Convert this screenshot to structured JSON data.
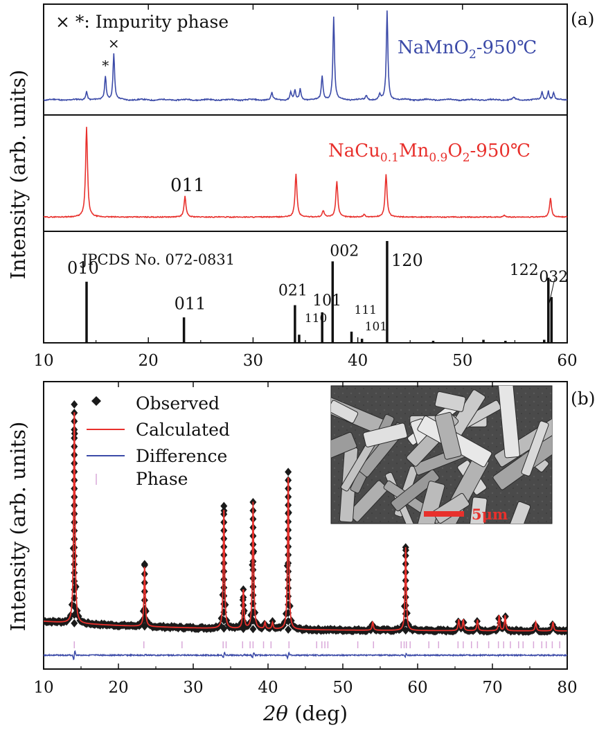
{
  "figure": {
    "panel_a_label": "(a)",
    "panel_b_label": "(b)",
    "ylabel": "Intensity (arb. units)",
    "xlabel_b_italic": "2θ",
    "xlabel_b_rest": " (deg)"
  },
  "chart_data": [
    {
      "type": "line",
      "panel": "(a) top",
      "annotation": "× *: Impurity phase",
      "series": [
        {
          "name": "NaMnO2-950℃",
          "label_prefix": "NaMnO",
          "label_sub": "2",
          "label_suffix": "-950℃",
          "color": "#3b4aa8"
        }
      ],
      "peaks": [
        {
          "x": 14.1,
          "h": 0.1
        },
        {
          "x": 15.9,
          "h": 0.27,
          "marker": "*"
        },
        {
          "x": 16.7,
          "h": 0.52,
          "marker": "×"
        },
        {
          "x": 31.8,
          "h": 0.08
        },
        {
          "x": 33.6,
          "h": 0.09
        },
        {
          "x": 34.0,
          "h": 0.1
        },
        {
          "x": 34.5,
          "h": 0.12
        },
        {
          "x": 36.6,
          "h": 0.27
        },
        {
          "x": 37.7,
          "h": 0.93
        },
        {
          "x": 40.8,
          "h": 0.05
        },
        {
          "x": 42.1,
          "h": 0.06
        },
        {
          "x": 42.8,
          "h": 1.0
        },
        {
          "x": 54.9,
          "h": 0.03
        },
        {
          "x": 57.6,
          "h": 0.09
        },
        {
          "x": 58.2,
          "h": 0.1
        },
        {
          "x": 58.7,
          "h": 0.08
        }
      ],
      "xlim": [
        10,
        60
      ]
    },
    {
      "type": "line",
      "panel": "(a) middle",
      "series": [
        {
          "name": "NaCu0.1Mn0.9O2-950℃",
          "color": "#e8302c"
        }
      ],
      "label_parts": [
        "NaCu",
        "0.1",
        "Mn",
        "0.9",
        "O",
        "2",
        "-950℃"
      ],
      "annotation": "011",
      "peaks": [
        {
          "x": 14.1,
          "h": 1.0
        },
        {
          "x": 23.5,
          "h": 0.23
        },
        {
          "x": 34.1,
          "h": 0.48
        },
        {
          "x": 36.7,
          "h": 0.07
        },
        {
          "x": 38.0,
          "h": 0.4
        },
        {
          "x": 40.6,
          "h": 0.03
        },
        {
          "x": 42.7,
          "h": 0.48
        },
        {
          "x": 54.0,
          "h": 0.02
        },
        {
          "x": 58.4,
          "h": 0.21
        }
      ],
      "xlim": [
        10,
        60
      ]
    },
    {
      "type": "bar",
      "panel": "(a) bottom",
      "title": "JPCDS No. 072-0831",
      "sticks": [
        {
          "x": 14.1,
          "h": 0.6,
          "hkl": "010"
        },
        {
          "x": 23.4,
          "h": 0.25,
          "hkl": "011"
        },
        {
          "x": 34.0,
          "h": 0.37,
          "hkl": "021"
        },
        {
          "x": 34.4,
          "h": 0.08,
          "hkl": "110"
        },
        {
          "x": 36.6,
          "h": 0.3,
          "hkl": "101"
        },
        {
          "x": 37.6,
          "h": 0.8,
          "hkl": "002"
        },
        {
          "x": 39.4,
          "h": 0.11,
          "hkl": "111"
        },
        {
          "x": 40.4,
          "h": 0.04,
          "hkl": "101"
        },
        {
          "x": 42.8,
          "h": 1.0,
          "hkl": "120"
        },
        {
          "x": 47.2,
          "h": 0.02
        },
        {
          "x": 52.0,
          "h": 0.03
        },
        {
          "x": 54.1,
          "h": 0.02
        },
        {
          "x": 57.8,
          "h": 0.03
        },
        {
          "x": 58.2,
          "h": 0.64,
          "hkl": "122"
        },
        {
          "x": 58.5,
          "h": 0.45,
          "hkl": "032"
        }
      ],
      "xlim": [
        10,
        60
      ],
      "xticks": [
        10,
        20,
        30,
        40,
        50,
        60
      ]
    },
    {
      "type": "scatter",
      "panel": "(b)",
      "legend": {
        "observed": "Observed",
        "calculated": "Calculated",
        "difference": "Difference",
        "phase": "Phase"
      },
      "colors": {
        "observed": "#1a1a1a",
        "calculated": "#e8302c",
        "difference": "#3b4aa8",
        "phase": "#d9a8d9"
      },
      "peaks": [
        {
          "x": 14.1,
          "h": 1.0
        },
        {
          "x": 23.5,
          "h": 0.28
        },
        {
          "x": 34.1,
          "h": 0.56
        },
        {
          "x": 36.7,
          "h": 0.18
        },
        {
          "x": 38.0,
          "h": 0.58
        },
        {
          "x": 39.6,
          "h": 0.03
        },
        {
          "x": 40.6,
          "h": 0.03
        },
        {
          "x": 42.7,
          "h": 0.72
        },
        {
          "x": 54.0,
          "h": 0.04
        },
        {
          "x": 58.4,
          "h": 0.38
        },
        {
          "x": 65.5,
          "h": 0.05
        },
        {
          "x": 66.1,
          "h": 0.05
        },
        {
          "x": 68.0,
          "h": 0.05
        },
        {
          "x": 70.9,
          "h": 0.07
        },
        {
          "x": 71.7,
          "h": 0.07
        },
        {
          "x": 75.8,
          "h": 0.04
        },
        {
          "x": 78.1,
          "h": 0.04
        }
      ],
      "phase_ticks": [
        14.1,
        23.4,
        28.5,
        34.0,
        34.4,
        36.6,
        37.6,
        38.0,
        39.4,
        40.4,
        42.8,
        46.5,
        47.2,
        47.6,
        48.0,
        52.0,
        54.1,
        57.8,
        58.2,
        58.5,
        59.0,
        61.5,
        62.8,
        65.4,
        66.1,
        67.2,
        68.0,
        69.5,
        70.8,
        71.5,
        72.4,
        73.5,
        74.1,
        75.5,
        76.6,
        77.2,
        78.0,
        79.0
      ],
      "inset_label": "5μm",
      "xlim": [
        10,
        80
      ],
      "xticks": [
        10,
        20,
        30,
        40,
        50,
        60,
        70,
        80
      ]
    }
  ]
}
